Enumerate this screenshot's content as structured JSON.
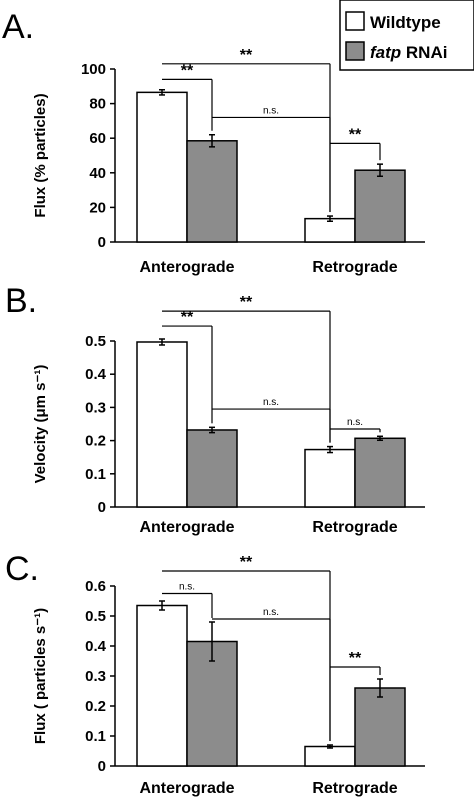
{
  "legend": {
    "items": [
      {
        "label": "Wildtype",
        "color": "#ffffff"
      },
      {
        "label_italic": "fatp",
        "label_rest": " RNAi",
        "color": "#8c8c8c"
      }
    ]
  },
  "chart_data": [
    {
      "panel": "A.",
      "type": "bar",
      "categories": [
        "Anterograde",
        "Retrograde"
      ],
      "series": [
        {
          "name": "Wildtype",
          "values": [
            86.5,
            13.5
          ],
          "errors": [
            1.5,
            1.5
          ]
        },
        {
          "name": "fatp RNAi",
          "values": [
            58.5,
            41.5
          ],
          "errors": [
            3.5,
            3.5
          ]
        }
      ],
      "ylabel": "Flux (% particles)",
      "ylim": [
        0,
        100
      ],
      "yticks": [
        0,
        20,
        40,
        60,
        80,
        100
      ],
      "ytick_labels": [
        "0",
        "20",
        "40",
        "60",
        "80",
        "100"
      ],
      "significance": [
        {
          "from": [
            0,
            0
          ],
          "to": [
            0,
            1
          ],
          "label": "**",
          "level": 94
        },
        {
          "from": [
            0,
            0
          ],
          "to": [
            1,
            0
          ],
          "label": "**",
          "level": 103
        },
        {
          "from": [
            0,
            1
          ],
          "to": [
            1,
            0
          ],
          "label": "n.s.",
          "level": 72
        },
        {
          "from": [
            1,
            0
          ],
          "to": [
            1,
            1
          ],
          "label": "**",
          "level": 57
        }
      ]
    },
    {
      "panel": "B.",
      "type": "bar",
      "categories": [
        "Anterograde",
        "Retrograde"
      ],
      "series": [
        {
          "name": "Wildtype",
          "values": [
            0.497,
            0.173
          ],
          "errors": [
            0.009,
            0.009
          ]
        },
        {
          "name": "fatp RNAi",
          "values": [
            0.232,
            0.207
          ],
          "errors": [
            0.008,
            0.006
          ]
        }
      ],
      "ylabel": "Velocity (μm s⁻¹)",
      "ylim": [
        0,
        0.5
      ],
      "yticks": [
        0,
        0.1,
        0.2,
        0.3,
        0.4,
        0.5
      ],
      "ytick_labels": [
        "0",
        "0.1",
        "0.2",
        "0.3",
        "0.4",
        "0.5"
      ],
      "significance": [
        {
          "from": [
            0,
            0
          ],
          "to": [
            0,
            1
          ],
          "label": "**",
          "level": 0.545
        },
        {
          "from": [
            0,
            0
          ],
          "to": [
            1,
            0
          ],
          "label": "**",
          "level": 0.59
        },
        {
          "from": [
            0,
            1
          ],
          "to": [
            1,
            0
          ],
          "label": "n.s.",
          "level": 0.295
        },
        {
          "from": [
            1,
            0
          ],
          "to": [
            1,
            1
          ],
          "label": "n.s.",
          "level": 0.235
        }
      ]
    },
    {
      "panel": "C.",
      "type": "bar",
      "categories": [
        "Anterograde",
        "Retrograde"
      ],
      "series": [
        {
          "name": "Wildtype",
          "values": [
            0.535,
            0.065
          ],
          "errors": [
            0.015,
            0.005
          ]
        },
        {
          "name": "fatp RNAi",
          "values": [
            0.415,
            0.26
          ],
          "errors": [
            0.065,
            0.03
          ]
        }
      ],
      "ylabel": "Flux ( particles s⁻¹)",
      "ylim": [
        0,
        0.6
      ],
      "yticks": [
        0,
        0.1,
        0.2,
        0.3,
        0.4,
        0.5,
        0.6
      ],
      "ytick_labels": [
        "0",
        "0.1",
        "0.2",
        "0.3",
        "0.4",
        "0.5",
        "0.6"
      ],
      "significance": [
        {
          "from": [
            0,
            0
          ],
          "to": [
            0,
            1
          ],
          "label": "n.s.",
          "level": 0.575
        },
        {
          "from": [
            0,
            0
          ],
          "to": [
            1,
            0
          ],
          "label": "**",
          "level": 0.65
        },
        {
          "from": [
            0,
            1
          ],
          "to": [
            1,
            0
          ],
          "label": "n.s.",
          "level": 0.49
        },
        {
          "from": [
            1,
            0
          ],
          "to": [
            1,
            1
          ],
          "label": "**",
          "level": 0.33
        }
      ]
    }
  ]
}
